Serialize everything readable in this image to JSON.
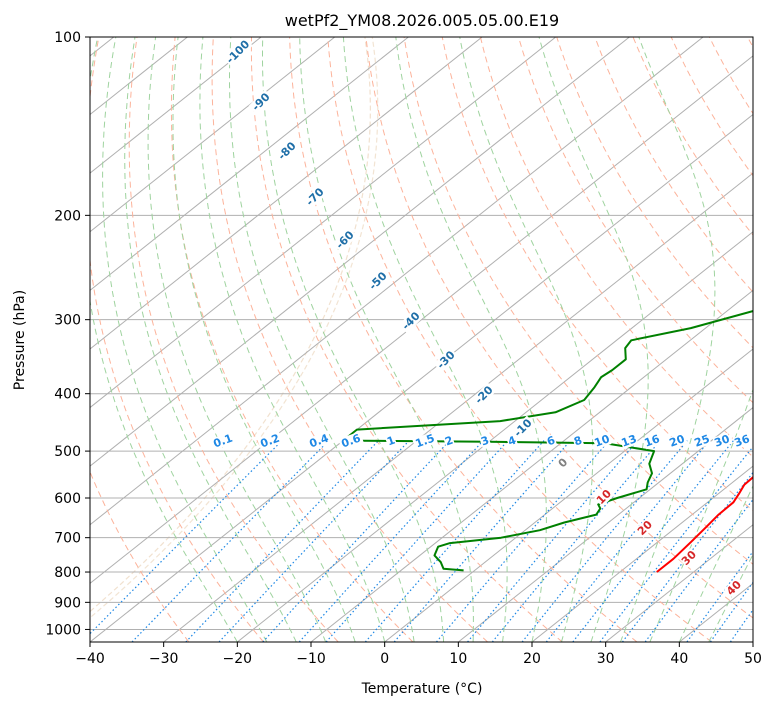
{
  "chart_data": {
    "type": "line",
    "subtype": "skew-t log-p",
    "title": "wetPf2_YM08.2026.005.05.00.E19",
    "xlabel": "Temperature (°C)",
    "ylabel": "Pressure (hPa)",
    "xlim": [
      -40,
      50
    ],
    "ylim": [
      1050,
      100
    ],
    "xticks": [
      -40,
      -30,
      -20,
      -10,
      0,
      10,
      20,
      30,
      40,
      50
    ],
    "yticks": [
      100,
      200,
      300,
      400,
      500,
      600,
      700,
      800,
      900,
      1000
    ],
    "grid": true,
    "colors": {
      "temperature": "#ff0000",
      "dewpoint": "#008000",
      "isotherm": "#b0b0b0",
      "dry_adiabat": "#fcb39b",
      "moist_adiabat": "#9fd39f",
      "mixing_ratio": "#1e88e5",
      "isotherm_label": "#1f6fa8",
      "dry_label": "#d62728",
      "cape_region": "#e6c9a8"
    },
    "series": [
      {
        "name": "Temperature",
        "points": [
          [
            2.0,
            100
          ],
          [
            1.8,
            110
          ],
          [
            1.5,
            122
          ],
          [
            1.1,
            135
          ],
          [
            0.9,
            145
          ],
          [
            1.8,
            160
          ],
          [
            3.5,
            180
          ],
          [
            5.5,
            200
          ],
          [
            7.5,
            220
          ],
          [
            10.0,
            250
          ],
          [
            12.5,
            280
          ],
          [
            14.5,
            300
          ],
          [
            16.5,
            330
          ],
          [
            17.5,
            360
          ],
          [
            18.2,
            380
          ],
          [
            19.5,
            400
          ],
          [
            21.0,
            430
          ],
          [
            22.0,
            460
          ],
          [
            22.3,
            475
          ],
          [
            21.8,
            490
          ],
          [
            21.6,
            510
          ],
          [
            21.8,
            540
          ],
          [
            22.0,
            570
          ],
          [
            22.8,
            590
          ],
          [
            23.5,
            610
          ],
          [
            23.6,
            640
          ],
          [
            24.0,
            670
          ],
          [
            24.5,
            710
          ],
          [
            25.0,
            760
          ],
          [
            25.0,
            800
          ]
        ]
      },
      {
        "name": "Dewpoint",
        "points": [
          [
            1.0,
            100
          ],
          [
            0.0,
            110
          ],
          [
            -1.3,
            120
          ],
          [
            -2.5,
            130
          ],
          [
            -2.0,
            140
          ],
          [
            -3.0,
            150
          ],
          [
            -3.5,
            160
          ],
          [
            -1.5,
            170
          ],
          [
            0.0,
            180
          ],
          [
            1.0,
            195
          ],
          [
            1.5,
            210
          ],
          [
            1.2,
            230
          ],
          [
            0.0,
            250
          ],
          [
            -2.0,
            270
          ],
          [
            -5.0,
            285
          ],
          [
            -12.0,
            310
          ],
          [
            -18.0,
            325
          ],
          [
            -17.5,
            335
          ],
          [
            -15.5,
            350
          ],
          [
            -15.5,
            365
          ],
          [
            -15.8,
            375
          ],
          [
            -15.0,
            390
          ],
          [
            -14.2,
            410
          ],
          [
            -16.0,
            430
          ],
          [
            -22.0,
            445
          ],
          [
            -40.0,
            460
          ],
          [
            -40.0,
            480
          ],
          [
            -20.0,
            482
          ],
          [
            -4.0,
            485
          ],
          [
            4.0,
            500
          ],
          [
            5.5,
            525
          ],
          [
            7.5,
            545
          ],
          [
            8.5,
            565
          ],
          [
            9.5,
            580
          ],
          [
            7.0,
            600
          ],
          [
            5.5,
            615
          ],
          [
            6.5,
            625
          ],
          [
            7.0,
            640
          ],
          [
            4.0,
            660
          ],
          [
            2.0,
            680
          ],
          [
            -2.0,
            700
          ],
          [
            -8.0,
            715
          ],
          [
            -9.0,
            725
          ],
          [
            -8.0,
            750
          ],
          [
            -6.0,
            770
          ],
          [
            -4.5,
            790
          ],
          [
            -1.5,
            795
          ]
        ]
      }
    ],
    "isotherm_labels": [
      "-100",
      "-90",
      "-80",
      "-70",
      "-60",
      "-50",
      "-40",
      "-30",
      "-20",
      "-10",
      "0"
    ],
    "dry_adiabat_labels": [
      "10",
      "20",
      "30",
      "40"
    ],
    "mixing_ratio_labels": [
      "0.1",
      "0.2",
      "0.4",
      "0.6",
      "1",
      "1.5",
      "2",
      "3",
      "4",
      "6",
      "8",
      "10",
      "13",
      "16",
      "20",
      "25",
      "30",
      "36"
    ]
  }
}
